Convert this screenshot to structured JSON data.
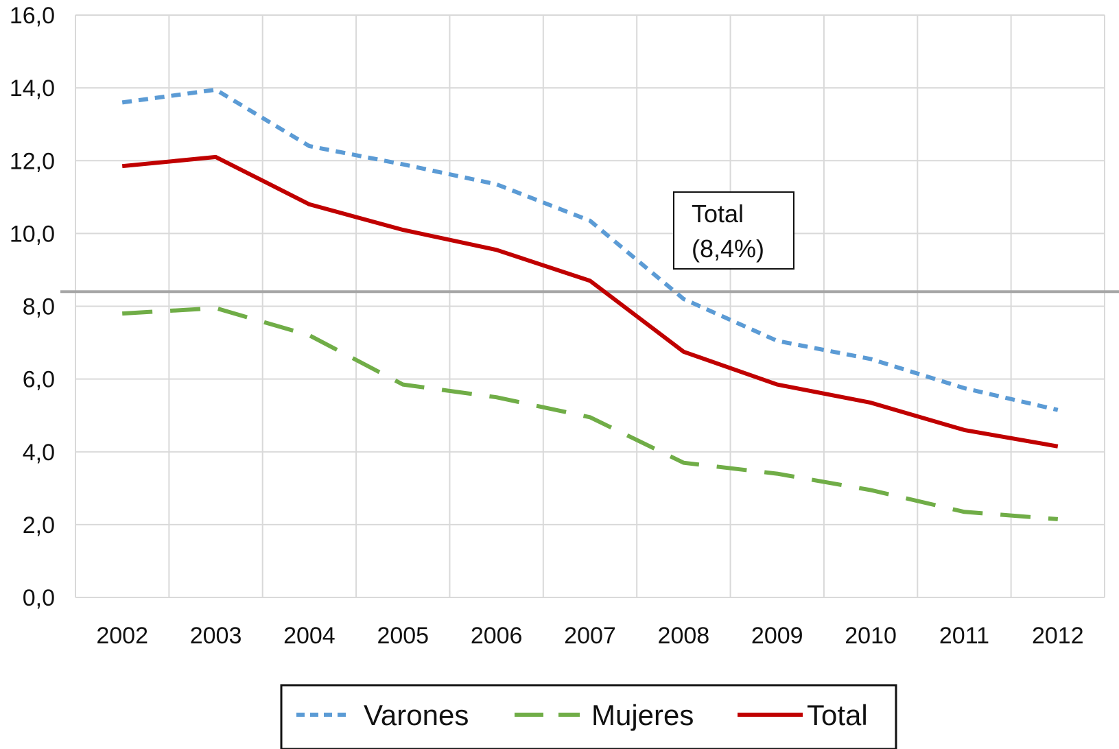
{
  "chart_data": {
    "type": "line",
    "categories": [
      "2002",
      "2003",
      "2004",
      "2005",
      "2006",
      "2007",
      "2008",
      "2009",
      "2010",
      "2011",
      "2012"
    ],
    "ylim": [
      0,
      16
    ],
    "yticks": [
      "0,0",
      "2,0",
      "4,0",
      "6,0",
      "8,0",
      "10,0",
      "12,0",
      "14,0",
      "16,0"
    ],
    "grid": true,
    "legend_position": "bottom",
    "series": [
      {
        "name": "Varones",
        "values": [
          13.6,
          13.95,
          12.4,
          11.9,
          11.35,
          10.35,
          8.2,
          7.05,
          6.55,
          5.75,
          5.15
        ],
        "color": "#5b9bd5",
        "style": "dashed"
      },
      {
        "name": "Mujeres",
        "values": [
          7.8,
          7.95,
          7.2,
          5.85,
          5.5,
          4.95,
          3.7,
          3.4,
          2.95,
          2.35,
          2.15
        ],
        "color": "#70ad47",
        "style": "long-dashed"
      },
      {
        "name": "Total",
        "values": [
          11.85,
          12.1,
          10.8,
          10.1,
          9.55,
          8.7,
          6.75,
          5.85,
          5.35,
          4.6,
          4.15
        ],
        "color": "#c00000",
        "style": "solid"
      }
    ],
    "reference_line": {
      "value": 8.4,
      "color": "#a6a6a6"
    },
    "annotation": {
      "line1": "Total",
      "line2": "(8,4%)"
    }
  }
}
